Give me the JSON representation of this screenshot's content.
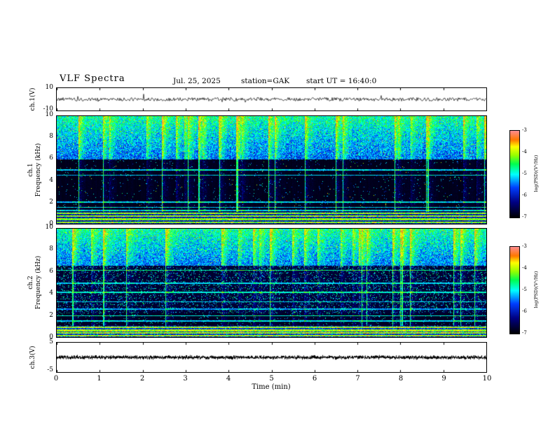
{
  "header": {
    "title": "VLF Spectra",
    "date": "Jul. 25, 2025",
    "station": "station=GAK",
    "start_ut": "start UT =  16:40:0"
  },
  "xaxis": {
    "label": "Time (min)",
    "ticks": [
      "0",
      "1",
      "2",
      "3",
      "4",
      "5",
      "6",
      "7",
      "8",
      "9",
      "10"
    ]
  },
  "panels": {
    "ch1_wave": {
      "ylabel": "ch.1(V)",
      "ytick_top": "10",
      "ytick_bottom": "-10"
    },
    "ch1_spec": {
      "ylabel_line1": "ch.1",
      "ylabel_line2": "Frequency (kHz)",
      "yticks": [
        "10",
        "8",
        "6",
        "4",
        "2",
        "0"
      ]
    },
    "ch2_spec": {
      "ylabel_line1": "ch.2",
      "ylabel_line2": "Frequency (kHz)",
      "yticks": [
        "10",
        "8",
        "6",
        "4",
        "2",
        "0"
      ]
    },
    "ch3_wave": {
      "ylabel": "ch.3(V)",
      "ytick_top": "5",
      "ytick_bottom": "-5"
    }
  },
  "colorbar": {
    "label": "log(PSD)(V²/Hz)",
    "ticks": [
      "-3",
      "-4",
      "-5",
      "-6",
      "-7"
    ]
  },
  "colors": {
    "frame": "#000000",
    "background": "#ffffff",
    "trace": "#000000",
    "colormap": [
      {
        "at": 0.0,
        "c": "#000000"
      },
      {
        "at": 0.18,
        "c": "#000082"
      },
      {
        "at": 0.35,
        "c": "#0040ff"
      },
      {
        "at": 0.5,
        "c": "#00ffff"
      },
      {
        "at": 0.62,
        "c": "#00ff50"
      },
      {
        "at": 0.72,
        "c": "#96ff00"
      },
      {
        "at": 0.82,
        "c": "#ffff00"
      },
      {
        "at": 0.9,
        "c": "#ff7800"
      },
      {
        "at": 1.0,
        "c": "#ff8c8c"
      }
    ]
  },
  "chart_data": [
    {
      "type": "line",
      "title": "ch.1 (V) raw waveform",
      "xlabel": "Time (min)",
      "ylabel": "ch.1(V)",
      "xlim": [
        0,
        10
      ],
      "ylim": [
        -10,
        10
      ],
      "description": "Dense broadband noisy voltage trace fluctuating around 0 V with small impulsive spikes for the full 10 minutes."
    },
    {
      "type": "heatmap",
      "title": "ch.1 VLF spectrogram",
      "xlabel": "Time (min)",
      "ylabel": "Frequency (kHz)",
      "xlim": [
        0,
        10
      ],
      "ylim": [
        0,
        10
      ],
      "colorbar_label": "log(PSD)(V²/Hz)",
      "zlim": [
        -7,
        -3
      ],
      "features": [
        "strong broadband impulsive activity (sferics) above ~6 kHz, log PSD ~ -4.5 to -3.5 (green/yellow)",
        "quiet dark band ~1-6 kHz near -7 (black/navy) crossed by thin vertical sferic streaks",
        "faint narrow horizontal emission lines near 5.0, 4.5, 2.0, 1.5 and 1.25 kHz",
        "intense banded emissions below ~1 kHz with occasional orange/red patches"
      ]
    },
    {
      "type": "heatmap",
      "title": "ch.2 VLF spectrogram",
      "xlabel": "Time (min)",
      "ylabel": "Frequency (kHz)",
      "xlim": [
        0,
        10
      ],
      "ylim": [
        0,
        10
      ],
      "colorbar_label": "log(PSD)(V²/Hz)",
      "zlim": [
        -7,
        -3
      ],
      "features": [
        "broadband impulsive activity above ~6.5 kHz (green/yellow)",
        "distinct horizontal emission lines near 6.2, 5.0, 4.15, 3.3, 2.6, 2.0 and 1.5 kHz",
        "patchy blue/cyan noise between ~2 and 6.5 kHz with vertical sferic streaks",
        "bright banded emissions below ~1 kHz"
      ]
    },
    {
      "type": "line",
      "title": "ch.3 (V) raw waveform",
      "xlabel": "Time (min)",
      "ylabel": "ch.3(V)",
      "xlim": [
        0,
        10
      ],
      "ylim": [
        -5,
        5
      ],
      "description": "Dense flat dark trace sitting at ~0 V across the entire record."
    }
  ]
}
